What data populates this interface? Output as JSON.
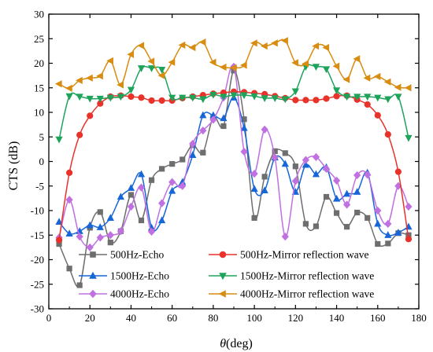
{
  "chart_data": {
    "type": "line",
    "xlabel_symbol": "θ",
    "xlabel_unit": "(deg)",
    "ylabel": "CTS (dB)",
    "xlim": [
      0,
      180
    ],
    "ylim": [
      -30,
      30
    ],
    "xticks": [
      0,
      20,
      40,
      60,
      80,
      100,
      120,
      140,
      160,
      180
    ],
    "yticks": [
      -30,
      -25,
      -20,
      -15,
      -10,
      -5,
      0,
      5,
      10,
      15,
      20,
      25,
      30
    ],
    "grid": false,
    "legend_position": "bottom",
    "x": [
      5,
      10,
      15,
      20,
      25,
      30,
      35,
      40,
      45,
      50,
      55,
      60,
      65,
      70,
      75,
      80,
      85,
      90,
      95,
      100,
      105,
      110,
      115,
      120,
      125,
      130,
      135,
      140,
      145,
      150,
      155,
      160,
      165,
      170,
      175
    ],
    "series": [
      {
        "name": "500Hz-Echo",
        "color": "#6e6e6e",
        "marker": "square",
        "values": [
          -16.8,
          -21.8,
          -25.2,
          -13.5,
          -10.3,
          -16.5,
          -14.2,
          -6.8,
          -12.0,
          -3.8,
          -1.5,
          -0.5,
          0.4,
          3.3,
          1.8,
          9.0,
          7.2,
          18.5,
          8.6,
          -11.5,
          -3.1,
          2.1,
          1.7,
          -1.0,
          -12.7,
          -13.2,
          -7.2,
          -10.5,
          -13.3,
          -10.4,
          -11.5,
          -16.8,
          -16.7,
          -14.6,
          -15.0
        ]
      },
      {
        "name": "500Hz-Mirror reflection wave",
        "color": "#e8322a",
        "marker": "circle",
        "values": [
          -16.0,
          -2.3,
          5.4,
          9.3,
          11.8,
          13.2,
          13.4,
          13.2,
          13.0,
          12.4,
          12.4,
          12.4,
          12.9,
          13.2,
          13.5,
          13.8,
          14.0,
          14.2,
          14.1,
          13.9,
          13.7,
          13.3,
          12.9,
          12.5,
          12.5,
          12.5,
          12.8,
          13.3,
          13.4,
          12.6,
          11.6,
          9.4,
          5.5,
          -2.1,
          -15.8
        ]
      },
      {
        "name": "1500Hz-Echo",
        "color": "#1666d8",
        "marker": "triangle-up",
        "values": [
          -12.3,
          -14.7,
          -14.2,
          -13.0,
          -13.4,
          -11.5,
          -7.2,
          -5.4,
          -2.6,
          -13.5,
          -12.0,
          -6.0,
          -4.2,
          1.3,
          9.4,
          9.4,
          8.8,
          13.0,
          6.8,
          -5.6,
          -5.9,
          0.8,
          -0.5,
          -6.2,
          -0.7,
          -2.6,
          -1.2,
          -7.6,
          -6.6,
          -6.2,
          -2.3,
          -12.7,
          -15.0,
          -14.5,
          -13.3
        ]
      },
      {
        "name": "1500Hz-Mirror reflection wave",
        "color": "#1ea35a",
        "marker": "triangle-down",
        "values": [
          4.5,
          13.3,
          13.2,
          12.8,
          12.8,
          13.0,
          13.2,
          14.6,
          19.0,
          19.0,
          18.7,
          13.0,
          13.0,
          13.0,
          12.7,
          13.6,
          13.2,
          13.5,
          13.5,
          13.3,
          12.9,
          12.9,
          12.7,
          14.3,
          19.3,
          19.3,
          18.8,
          14.5,
          13.2,
          13.2,
          13.2,
          13.0,
          12.7,
          13.2,
          4.8
        ]
      },
      {
        "name": "4000Hz-Echo",
        "color": "#c070e0",
        "marker": "diamond",
        "values": [
          -15.5,
          -7.8,
          -15.3,
          -17.5,
          -15.5,
          -15.0,
          -14.2,
          -9.2,
          -5.3,
          -14.3,
          -8.5,
          -4.2,
          -5.0,
          3.6,
          6.3,
          8.5,
          13.0,
          19.3,
          2.0,
          -2.5,
          6.5,
          0.8,
          -15.3,
          -4.0,
          0.3,
          0.9,
          -1.5,
          -3.9,
          -8.8,
          -2.8,
          -2.7,
          -10.0,
          -12.7,
          -5.0,
          -9.2
        ]
      },
      {
        "name": "4000Hz-Mirror reflection wave",
        "color": "#d88c10",
        "marker": "triangle-left",
        "values": [
          15.8,
          14.9,
          16.5,
          17.0,
          17.4,
          20.5,
          15.6,
          21.8,
          23.6,
          20.4,
          17.5,
          20.2,
          23.7,
          23.2,
          24.3,
          20.2,
          19.2,
          19.1,
          19.6,
          24.1,
          23.5,
          24.1,
          24.6,
          20.1,
          19.9,
          23.5,
          23.2,
          19.4,
          16.7,
          20.9,
          17.0,
          17.3,
          16.2,
          15.1,
          15.0
        ]
      }
    ]
  }
}
